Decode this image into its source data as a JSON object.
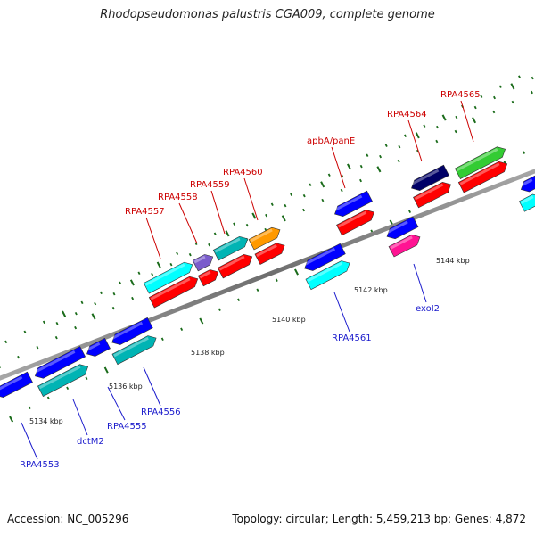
{
  "title": "Rhodopseudomonas palustris CGA009, complete genome",
  "footer": {
    "accession": "Accession: NC_005296",
    "info": "Topology: circular; Length: 5,459,213 bp; Genes: 4,872"
  },
  "scale": {
    "color": "#808080",
    "ticks": [
      {
        "label": "5134 kbp",
        "pos": 5134
      },
      {
        "label": "5136 kbp",
        "pos": 5136
      },
      {
        "label": "5138 kbp",
        "pos": 5138
      },
      {
        "label": "5140 kbp",
        "pos": 5140
      },
      {
        "label": "5142 kbp",
        "pos": 5142
      },
      {
        "label": "5144 kbp",
        "pos": 5144
      }
    ]
  },
  "genes": [
    {
      "label": "RPA4553",
      "strand": "minus",
      "color": "#1a1acc"
    },
    {
      "label": "dctM2",
      "strand": "minus",
      "color": "#1a1acc"
    },
    {
      "label": "RPA4555",
      "strand": "minus",
      "color": "#1a1acc"
    },
    {
      "label": "RPA4556",
      "strand": "minus",
      "color": "#1a1acc"
    },
    {
      "label": "RPA4557",
      "strand": "plus",
      "color": "#cc0000"
    },
    {
      "label": "RPA4558",
      "strand": "plus",
      "color": "#cc0000"
    },
    {
      "label": "RPA4559",
      "strand": "plus",
      "color": "#cc0000"
    },
    {
      "label": "RPA4560",
      "strand": "plus",
      "color": "#cc0000"
    },
    {
      "label": "apbA/panE",
      "strand": "plus",
      "color": "#cc0000"
    },
    {
      "label": "RPA4561",
      "strand": "minus",
      "color": "#1a1acc"
    },
    {
      "label": "exoI2",
      "strand": "minus",
      "color": "#1a1acc"
    },
    {
      "label": "RPA4564",
      "strand": "plus",
      "color": "#cc0000"
    },
    {
      "label": "RPA4565",
      "strand": "plus",
      "color": "#cc0000"
    }
  ],
  "colors": {
    "cds_forward": "#ff0000",
    "cds_reverse": "#0000ff",
    "cog_cyan": "#00ffff",
    "cog_teal": "#00b4b4",
    "cog_purple": "#7a5ccc",
    "cog_orange": "#ff9900",
    "cog_navy": "#000066",
    "cog_green": "#33cc33",
    "cog_magenta": "#ff1493",
    "tick_green": "#1a6b1a"
  }
}
